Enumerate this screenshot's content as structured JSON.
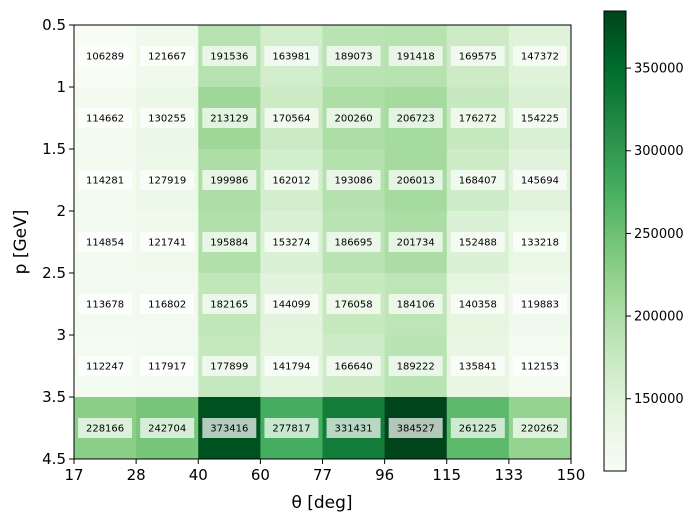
{
  "chart_data": {
    "type": "heatmap",
    "colormap": "Greens",
    "xlabel": "θ [deg]",
    "ylabel": "p [GeV]",
    "x_edges": [
      "17",
      "28",
      "40",
      "60",
      "77",
      "96",
      "115",
      "133",
      "150"
    ],
    "y_edges": [
      "0.5",
      "1",
      "1.5",
      "2",
      "2.5",
      "3",
      "3.5",
      "4.5"
    ],
    "values": [
      [
        106289,
        121667,
        191536,
        163981,
        189073,
        191418,
        169575,
        147372
      ],
      [
        114662,
        130255,
        213129,
        170564,
        200260,
        206723,
        176272,
        154225
      ],
      [
        114281,
        127919,
        199986,
        162012,
        193086,
        206013,
        168407,
        145694
      ],
      [
        114854,
        121741,
        195884,
        153274,
        186695,
        201734,
        152488,
        133218
      ],
      [
        113678,
        116802,
        182165,
        144099,
        176058,
        184106,
        140358,
        119883
      ],
      [
        112247,
        117917,
        177899,
        141794,
        166640,
        189222,
        135841,
        112153
      ],
      [
        228166,
        242704,
        373416,
        277817,
        331431,
        384527,
        261225,
        220262
      ]
    ],
    "colorbar": {
      "vmin": 106289,
      "vmax": 384527,
      "ticks": [
        "150000",
        "200000",
        "250000",
        "300000",
        "350000"
      ]
    }
  }
}
